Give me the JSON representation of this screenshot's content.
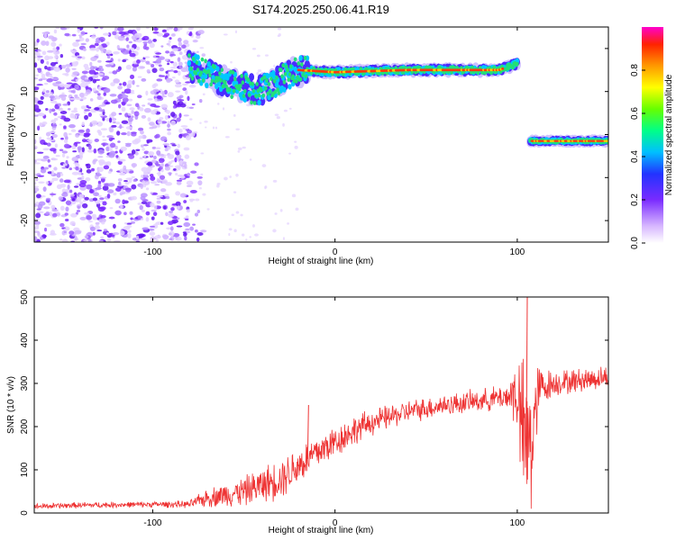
{
  "title": "S174.2025.250.06.41.R19",
  "colors": {
    "series": "#ee3333",
    "background": "#ffffff",
    "axis": "#000000"
  },
  "chart_data": [
    {
      "type": "heatmap",
      "title": "S174.2025.250.06.41.R19",
      "xlabel": "Height of straight line (km)",
      "ylabel": "Frequency (Hz)",
      "xlim": [
        -165,
        150
      ],
      "ylim": [
        -25,
        25
      ],
      "xticks": [
        -100,
        0,
        100
      ],
      "yticks": [
        -20,
        -10,
        0,
        10,
        20
      ],
      "xtick_labels": [
        "-100",
        "0",
        "100"
      ],
      "ytick_labels": [
        "-20",
        "-10",
        "0",
        "10",
        "20"
      ],
      "colorbar": {
        "label": "Normalized spectral amplitude",
        "range": [
          0,
          1
        ],
        "ticks": [
          0.0,
          0.2,
          0.4,
          0.6,
          0.8
        ],
        "tick_labels": [
          "0.0",
          "0.2",
          "0.4",
          "0.6",
          "0.8"
        ]
      },
      "features": [
        {
          "name": "noise-scatter",
          "x_range": [
            -165,
            -80
          ],
          "freq_range": [
            -25,
            25
          ]
        },
        {
          "name": "main-trace",
          "points": [
            [
              -80,
              16
            ],
            [
              -60,
              12
            ],
            [
              -42,
              10
            ],
            [
              -20,
              15
            ],
            [
              0,
              14.5
            ],
            [
              40,
              15
            ],
            [
              90,
              15
            ],
            [
              100,
              16.5
            ]
          ],
          "peak_amplitude": 0.95
        },
        {
          "name": "shifted-trace",
          "points": [
            [
              107,
              -1.5
            ],
            [
              150,
              -1.5
            ]
          ],
          "peak_amplitude": 0.9
        }
      ]
    },
    {
      "type": "line",
      "xlabel": "Height of straight line (km)",
      "ylabel": "SNR (10 * v/v)",
      "xlim": [
        -165,
        150
      ],
      "ylim": [
        0,
        500
      ],
      "xticks": [
        -100,
        0,
        100
      ],
      "yticks": [
        0,
        100,
        200,
        300,
        400,
        500
      ],
      "xtick_labels": [
        "-100",
        "0",
        "100"
      ],
      "ytick_labels": [
        "0",
        "100",
        "200",
        "300",
        "400",
        "500"
      ],
      "series": [
        {
          "name": "SNR",
          "envelope_x": [
            -165,
            -140,
            -100,
            -80,
            -70,
            -50,
            -30,
            -20,
            -10,
            0,
            10,
            20,
            40,
            60,
            80,
            95,
            100,
            104,
            108,
            112,
            120,
            150
          ],
          "envelope_mean": [
            15,
            18,
            20,
            20,
            35,
            50,
            80,
            110,
            140,
            165,
            190,
            210,
            235,
            250,
            260,
            270,
            280,
            150,
            170,
            290,
            300,
            315
          ],
          "envelope_spread": [
            8,
            8,
            8,
            10,
            25,
            40,
            55,
            55,
            50,
            45,
            40,
            35,
            30,
            30,
            30,
            35,
            120,
            220,
            220,
            60,
            35,
            30
          ]
        }
      ],
      "annotations": [
        {
          "x": -15,
          "value": 250,
          "note": "spike"
        },
        {
          "x": 105,
          "value": 500,
          "note": "peak"
        }
      ]
    }
  ]
}
